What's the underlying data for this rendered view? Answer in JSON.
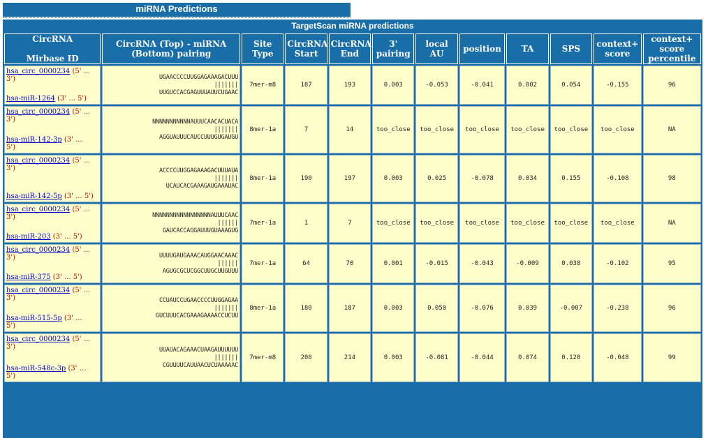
{
  "section_title": "miRNA Predictions",
  "table_title": "TargetScan miRNA predictions",
  "headers": {
    "circ_a": "CircRNA",
    "circ_b": "Mirbase ID",
    "pairing_a": "CircRNA (Top) - miRNA",
    "pairing_b": "(Bottom) pairing",
    "site_type_a": "Site",
    "site_type_b": "Type",
    "start_a": "CircRNA",
    "start_b": "Start",
    "end_a": "CircRNA",
    "end_b": "End",
    "three_a": "3'",
    "three_b": "pairing",
    "local_au": "local AU",
    "position": "position",
    "ta": "TA",
    "sps": "SPS",
    "ctx_a": "context+",
    "ctx_b": "score",
    "pct_a": "context+",
    "pct_b": "score",
    "pct_c": "percentile"
  },
  "rows": [
    {
      "circ": "hsa_circ_0000234",
      "circ_dir": "(5' ...",
      "circ_dir2": "3')",
      "mirna": "hsa-miR-1264",
      "mirna_dir": "(3' ... 5')",
      "top": "UGAACCCCUUGGAGAAAGACUUU",
      "bars": "|||||||",
      "bottom": "UUGUCCACGAGUUUAUUCUGAAC",
      "site": "7mer-m8",
      "start": "187",
      "end": "193",
      "three": "0.003",
      "au": "-0.053",
      "pos": "-0.041",
      "ta": "0.002",
      "sps": "0.054",
      "ctx": "-0.155",
      "pct": "96"
    },
    {
      "circ": "hsa_circ_0000234",
      "circ_dir": "(5' ...",
      "circ_dir2": "3')",
      "mirna": "hsa-miR-142-3p",
      "mirna_dir": "(3' ...",
      "mirna_dir2": "5')",
      "top": "NNNNNNNNNNNAUUUCAACACUACA",
      "bars": "|||||||",
      "bottom": "AGGUAUUUCAUCCUUUGUGAUGU",
      "site": "8mer-1a",
      "start": "7",
      "end": "14",
      "three": "too_close",
      "au": "too_close",
      "pos": "too_close",
      "ta": "too_close",
      "sps": "too_close",
      "ctx": "too_close",
      "pct": "NA"
    },
    {
      "circ": "hsa_circ_0000234",
      "circ_dir": "(5' ...",
      "circ_dir2": "3')",
      "mirna": "hsa-miR-142-5p",
      "mirna_dir": "(3' ... 5')",
      "top": "ACCCCUUGGAGAAAGACUUUAUA",
      "bars": "|||||||",
      "bottom": "UCAUCACGAAAGAUGAAAUAC",
      "site": "8mer-1a",
      "start": "190",
      "end": "197",
      "three": "0.003",
      "au": "0.025",
      "pos": "-0.078",
      "ta": "0.034",
      "sps": "0.155",
      "ctx": "-0.108",
      "pct": "98"
    },
    {
      "circ": "hsa_circ_0000234",
      "circ_dir": "(5' ...",
      "circ_dir2": "3')",
      "mirna": "hsa-miR-203",
      "mirna_dir": "(3' ... 5')",
      "top": "NNNNNNNNNNNNNNNNNAUUUCAAC",
      "bars": "||||||",
      "bottom": "GAUCACCAGGAUUUGUAAAGUG",
      "site": "7mer-1a",
      "start": "1",
      "end": "7",
      "three": "too_close",
      "au": "too_close",
      "pos": "too_close",
      "ta": "too_close",
      "sps": "too_close",
      "ctx": "too_close",
      "pct": "NA"
    },
    {
      "circ": "hsa_circ_0000234",
      "circ_dir": "(5' ...",
      "circ_dir2": "3')",
      "mirna": "hsa-miR-375",
      "mirna_dir": "(3' ... 5')",
      "top": "UUUUGAUGAAACAUGGAACAAAC",
      "bars": "||||||",
      "bottom": "AGUGCGCUCGGCUUGCUUGUUU",
      "site": "7mer-1a",
      "start": "64",
      "end": "70",
      "three": "0.001",
      "au": "-0.015",
      "pos": "-0.043",
      "ta": "-0.009",
      "sps": "0.038",
      "ctx": "-0.102",
      "pct": "95"
    },
    {
      "circ": "hsa_circ_0000234",
      "circ_dir": "(5' ...",
      "circ_dir2": "3')",
      "mirna": "hsa-miR-515-5p",
      "mirna_dir": "(3' ...",
      "mirna_dir2": "5')",
      "top": "CCUAUCCUGAACCCCUUGGAGAA",
      "bars": "|||||||",
      "bottom": "GUCUUUCACGAAAGAAAACCUCUU",
      "site": "8mer-1a",
      "start": "180",
      "end": "187",
      "three": "0.003",
      "au": "0.050",
      "pos": "-0.076",
      "ta": "0.039",
      "sps": "-0.007",
      "ctx": "-0.238",
      "pct": "96"
    },
    {
      "circ": "hsa_circ_0000234",
      "circ_dir": "(5' ...",
      "circ_dir2": "3')",
      "mirna": "hsa-miR-548c-3p",
      "mirna_dir": "(3' ...",
      "mirna_dir2": "5')",
      "top": "UUAUACAGAAACUAAGAUUUUUU",
      "bars": "|||||||",
      "bottom": "CGUUUUCAUUAACUCUAAAAAC",
      "site": "7mer-m8",
      "start": "208",
      "end": "214",
      "three": "0.003",
      "au": "-0.081",
      "pos": "-0.044",
      "ta": "0.074",
      "sps": "0.120",
      "ctx": "-0.048",
      "pct": "99"
    }
  ]
}
